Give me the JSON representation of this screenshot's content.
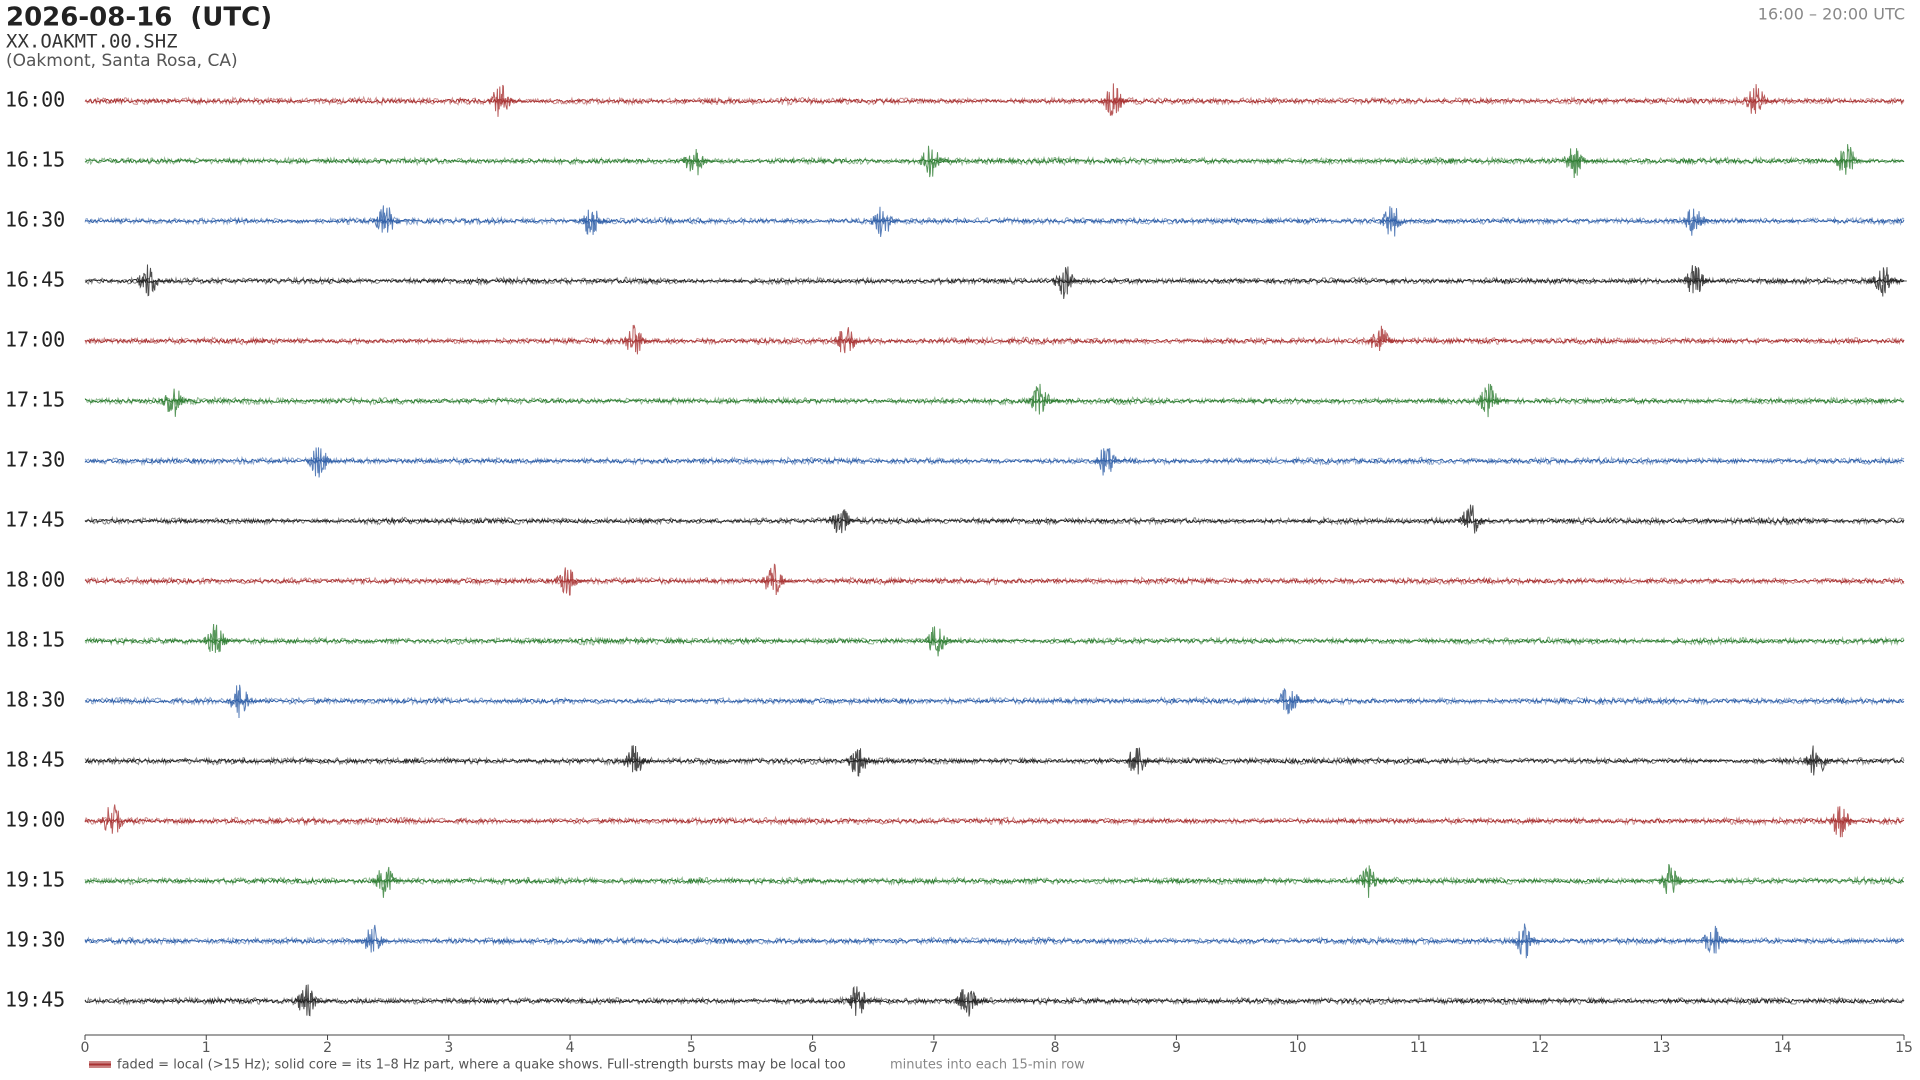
{
  "chart_data": {
    "type": "helicorder",
    "title": "2026-08-16  (UTC)",
    "station": "XX.OAKMT.00.SHZ",
    "location": "(Oakmont, Santa Rosa, CA)",
    "range_label": "16:00 – 20:00 UTC",
    "x_label": "minutes into each 15-min row",
    "legend_note": "faded = local (>15 Hz); solid core = its 1–8 Hz part, where a quake shows. Full-strength bursts may be local too",
    "legend_color": "#a83232",
    "xlim": [
      0,
      15
    ],
    "xticks": [
      0,
      1,
      2,
      3,
      4,
      5,
      6,
      7,
      8,
      9,
      10,
      11,
      12,
      13,
      14,
      15
    ],
    "rows": [
      {
        "name": "16:00",
        "color": "#a83232",
        "bursts": [
          3.45,
          8.5,
          13.8
        ]
      },
      {
        "name": "16:15",
        "color": "#2e7d32",
        "bursts": [
          5.05,
          7.0,
          12.3,
          14.55
        ]
      },
      {
        "name": "16:30",
        "color": "#2f5fa8",
        "bursts": [
          2.5,
          4.2,
          6.6,
          10.8,
          13.3
        ]
      },
      {
        "name": "16:45",
        "color": "#222222",
        "bursts": [
          0.55,
          8.1,
          13.3,
          14.85
        ]
      },
      {
        "name": "17:00",
        "color": "#a83232",
        "bursts": [
          4.55,
          6.3,
          10.7
        ]
      },
      {
        "name": "17:15",
        "color": "#2e7d32",
        "bursts": [
          0.75,
          7.9,
          11.6
        ]
      },
      {
        "name": "17:30",
        "color": "#2f5fa8",
        "bursts": [
          1.95,
          8.45
        ]
      },
      {
        "name": "17:45",
        "color": "#222222",
        "bursts": [
          6.25,
          11.45
        ]
      },
      {
        "name": "18:00",
        "color": "#a83232",
        "bursts": [
          4.0,
          5.7
        ]
      },
      {
        "name": "18:15",
        "color": "#2e7d32",
        "bursts": [
          1.1,
          7.05
        ]
      },
      {
        "name": "18:30",
        "color": "#2f5fa8",
        "bursts": [
          1.3,
          9.95
        ]
      },
      {
        "name": "18:45",
        "color": "#222222",
        "bursts": [
          4.55,
          6.4,
          8.7,
          14.3
        ]
      },
      {
        "name": "19:00",
        "color": "#a83232",
        "bursts": [
          0.25,
          14.5
        ]
      },
      {
        "name": "19:15",
        "color": "#2e7d32",
        "bursts": [
          2.5,
          10.6,
          13.1
        ]
      },
      {
        "name": "19:30",
        "color": "#2f5fa8",
        "bursts": [
          2.4,
          11.9,
          13.45
        ]
      },
      {
        "name": "19:45",
        "color": "#222222",
        "bursts": [
          1.85,
          6.4,
          7.3
        ]
      }
    ]
  }
}
